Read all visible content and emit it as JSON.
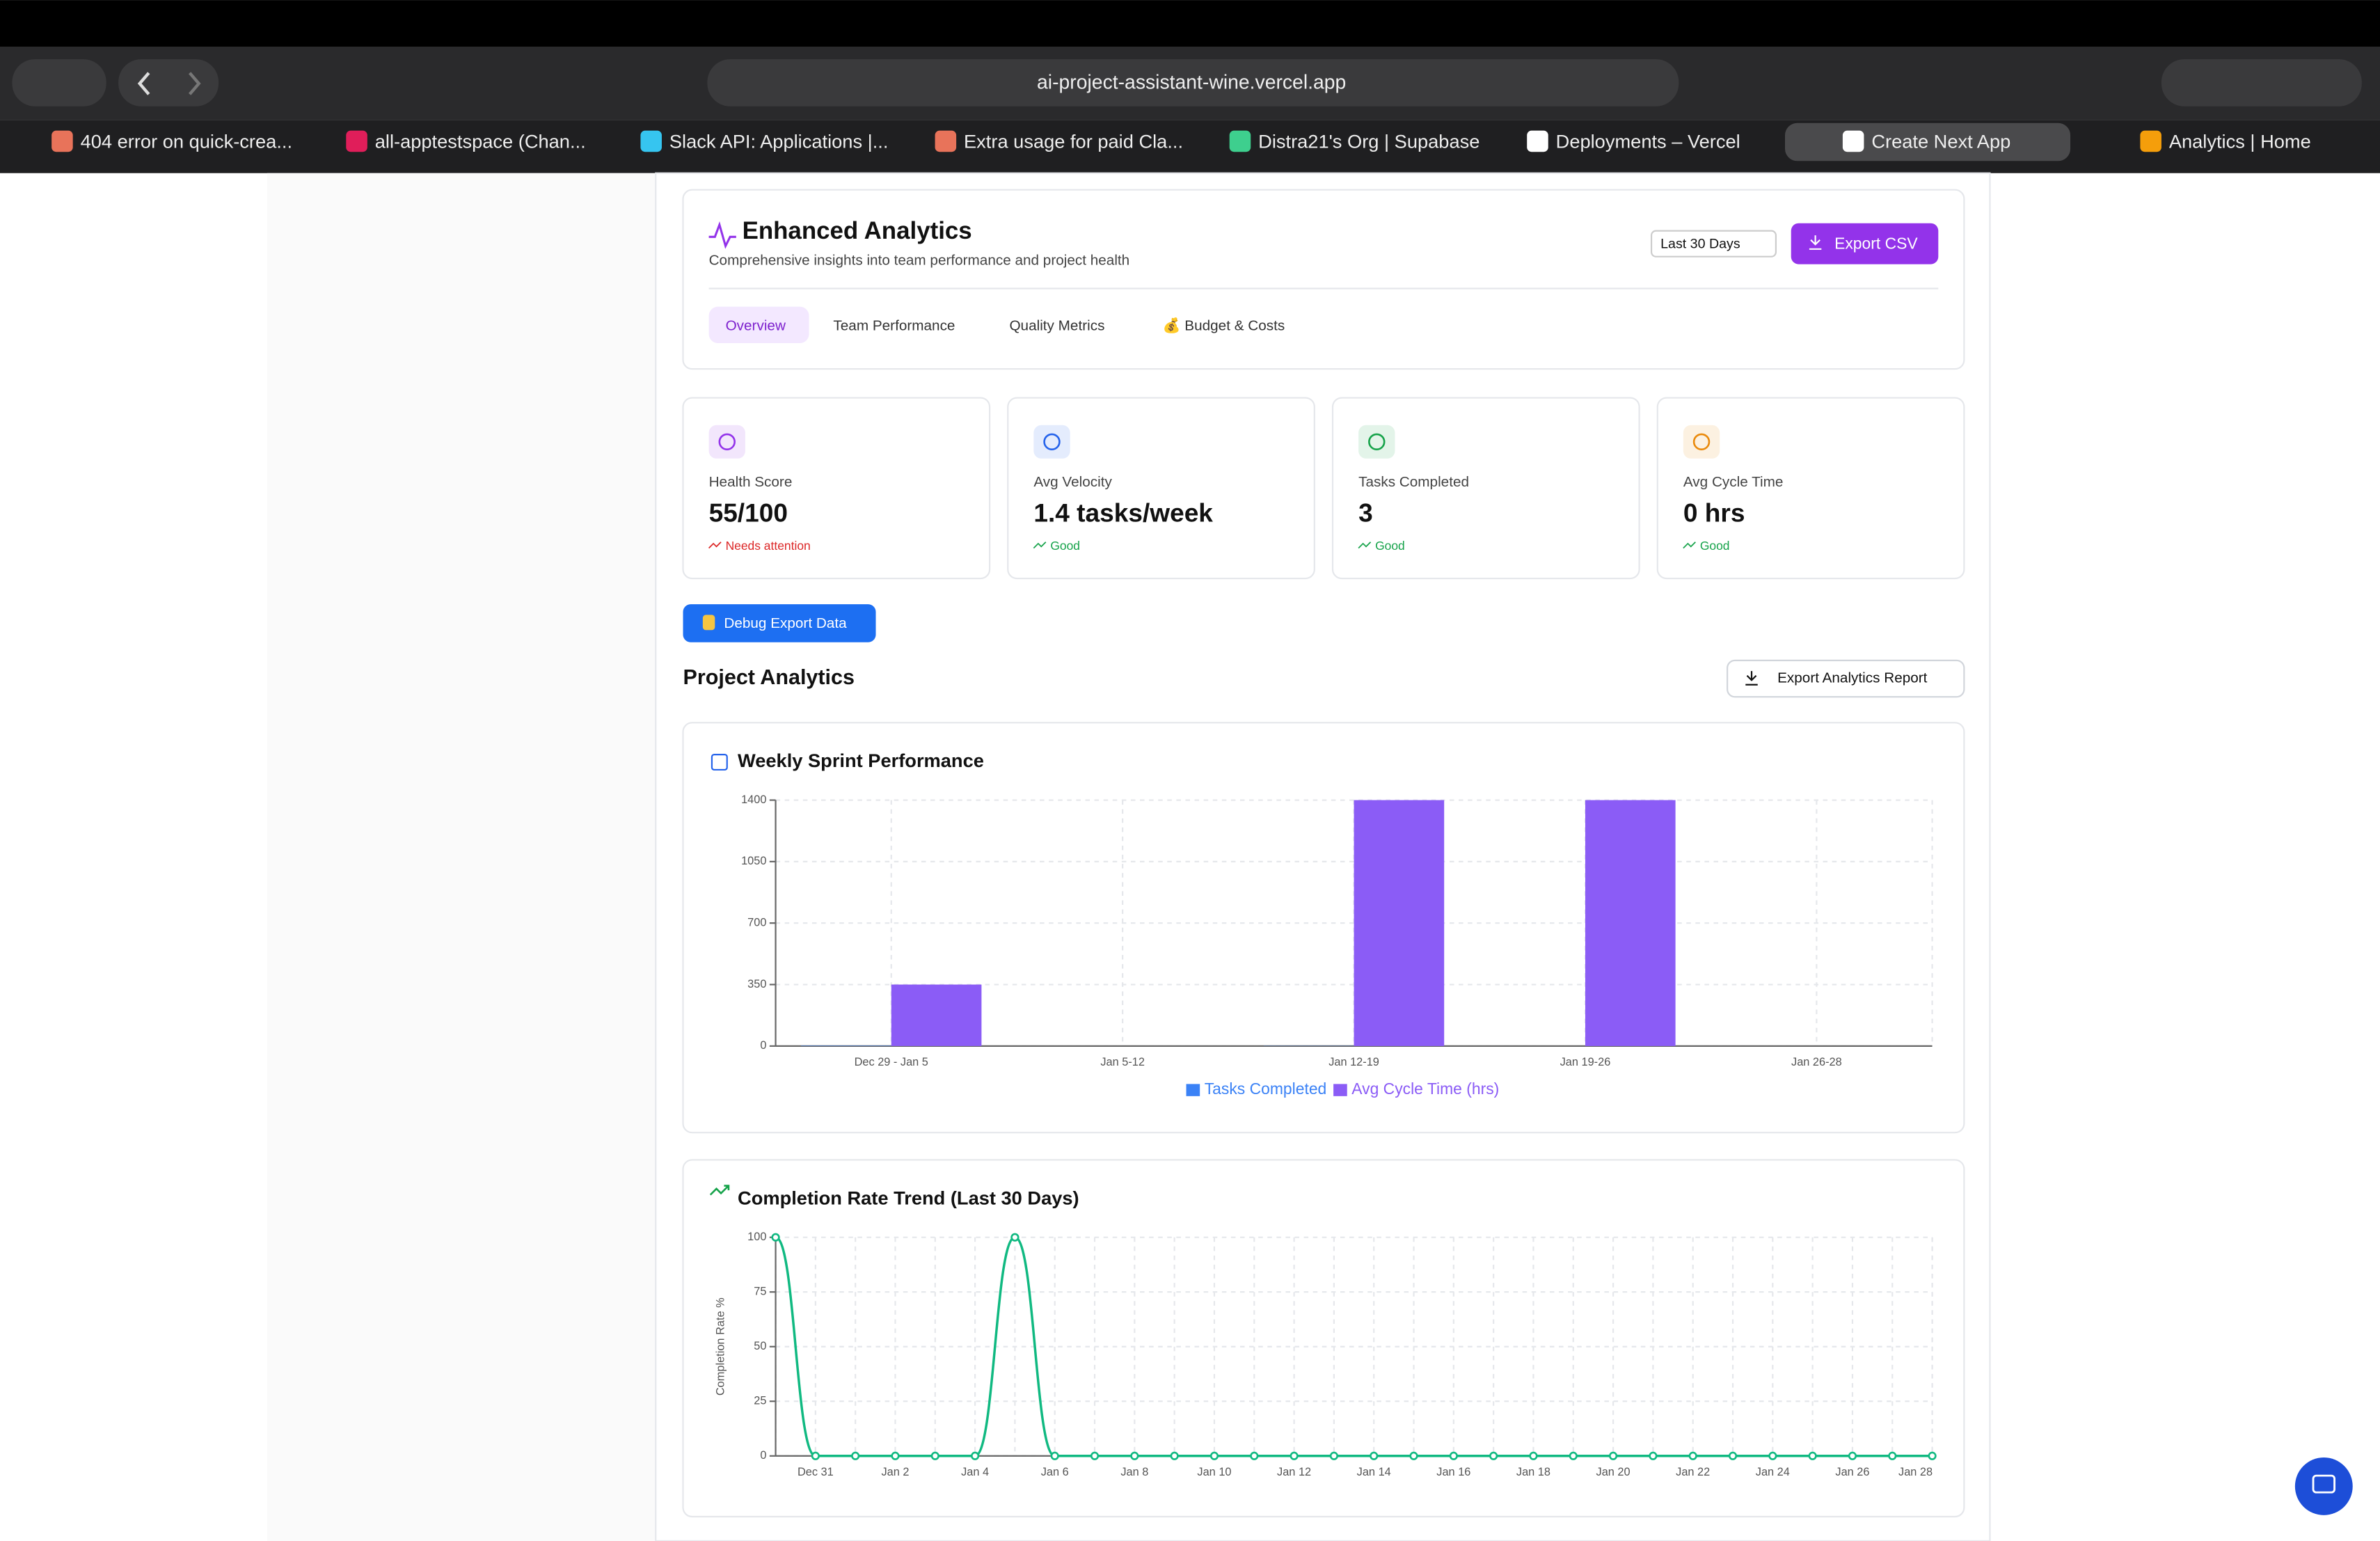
{
  "browser": {
    "url": "ai-project-assistant-wine.vercel.app",
    "tabs": [
      "404 error on quick-crea...",
      "all-apptestspace (Chan...",
      "Slack API: Applications |...",
      "Extra usage for paid Cla...",
      "Distra21's Org | Supabase",
      "Deployments – Vercel",
      "Create Next App",
      "Analytics | Home"
    ]
  },
  "header": {
    "title": "Enhanced Analytics",
    "subtitle": "Comprehensive insights into team performance and project health",
    "range": "Last 30 Days",
    "export": "Export CSV",
    "tabs": [
      "Overview",
      "Team Performance",
      "Quality Metrics",
      "💰 Budget & Costs"
    ]
  },
  "stats": [
    {
      "label": "Health Score",
      "value": "55/100",
      "status": "Needs attention",
      "status_color": "#dc2626",
      "icon_color": "#9333ea"
    },
    {
      "label": "Avg Velocity",
      "value": "1.4 tasks/week",
      "status": "Good",
      "status_color": "#16a34a",
      "icon_color": "#2563eb"
    },
    {
      "label": "Tasks Completed",
      "value": "3",
      "status": "Good",
      "status_color": "#16a34a",
      "icon_color": "#16a34a"
    },
    {
      "label": "Avg Cycle Time",
      "value": "0 hrs",
      "status": "Good",
      "status_color": "#16a34a",
      "icon_color": "#ea8a0c"
    }
  ],
  "debug_button": "Debug Export Data",
  "section_title": "Project Analytics",
  "export_report": "Export Analytics Report",
  "chart_data": [
    {
      "type": "bar",
      "title": "Weekly Sprint Performance",
      "categories": [
        "Dec 29 - Jan 5",
        "Jan 5-12",
        "Jan 12-19",
        "Jan 19-26",
        "Jan 26-28"
      ],
      "series": [
        {
          "name": "Tasks Completed",
          "color": "#3b82f6",
          "values": [
            2,
            0,
            1,
            0,
            0
          ]
        },
        {
          "name": "Avg Cycle Time (hrs)",
          "color": "#8b5cf6",
          "values": [
            350,
            0,
            1400,
            1400,
            0
          ]
        }
      ],
      "ylim": [
        0,
        1400
      ],
      "yticks": [
        0,
        350,
        700,
        1050,
        1400
      ],
      "grid": true
    },
    {
      "type": "line",
      "title": "Completion Rate Trend (Last 30 Days)",
      "y_label": "Completion Rate %",
      "categories": [
        null,
        "Dec 31",
        null,
        "Jan 2",
        null,
        "Jan 4",
        null,
        "Jan 6",
        null,
        "Jan 8",
        null,
        "Jan 10",
        null,
        "Jan 12",
        null,
        "Jan 14",
        null,
        "Jan 16",
        null,
        "Jan 18",
        null,
        "Jan 20",
        null,
        "Jan 22",
        null,
        "Jan 24",
        null,
        "Jan 26",
        null,
        "Jan 28"
      ],
      "series": [
        {
          "color": "#10b981",
          "values": [
            100,
            0,
            0,
            0,
            0,
            0,
            100,
            0,
            0,
            0,
            0,
            0,
            0,
            0,
            0,
            0,
            0,
            0,
            0,
            0,
            0,
            0,
            0,
            0,
            0,
            0,
            0,
            0,
            0,
            0
          ]
        }
      ],
      "ylim": [
        0,
        100
      ],
      "yticks": [
        0,
        25,
        50,
        75,
        100
      ],
      "grid": true
    }
  ]
}
